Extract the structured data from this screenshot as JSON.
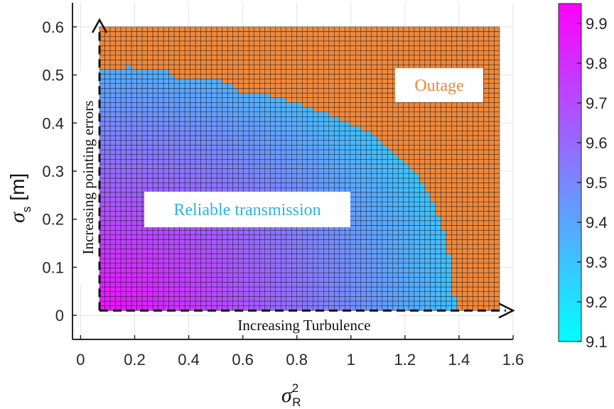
{
  "chart_data": {
    "type": "heatmap",
    "title": "",
    "xlabel": "σ",
    "xlabel_superscript": "2",
    "xlabel_subscript": "R",
    "ylabel": "σ",
    "ylabel_subscript": "s",
    "ylabel_unit": "[m]",
    "xlim": [
      -0.03,
      1.6
    ],
    "ylim": [
      -0.05,
      0.65
    ],
    "x_ticks": [
      0,
      0.2,
      0.4,
      0.6,
      0.8,
      1,
      1.2,
      1.4,
      1.6
    ],
    "x_tick_labels": [
      "0",
      "0.2",
      "0.4",
      "0.6",
      "0.8",
      "1",
      "1.2",
      "1.4",
      "1.6"
    ],
    "y_ticks": [
      0,
      0.1,
      0.2,
      0.3,
      0.4,
      0.5,
      0.6
    ],
    "y_tick_labels": [
      "0",
      "0.1",
      "0.2",
      "0.3",
      "0.4",
      "0.5",
      "0.6"
    ],
    "grid": true,
    "grid_extent": {
      "x_min": 0.07,
      "x_max": 1.55,
      "y_min": 0.01,
      "y_max": 0.6
    },
    "grid_cells": {
      "nx": 75,
      "ny": 60
    },
    "outage_color": "#f0883a",
    "cell_edge_color": "#1a1a1a",
    "reliable_boundary": [
      [
        0.07,
        0.51
      ],
      [
        0.17,
        0.51
      ],
      [
        0.18,
        0.52
      ],
      [
        0.2,
        0.51
      ],
      [
        0.33,
        0.51
      ],
      [
        0.35,
        0.49
      ],
      [
        0.52,
        0.49
      ],
      [
        0.55,
        0.48
      ],
      [
        0.57,
        0.47
      ],
      [
        0.62,
        0.46
      ],
      [
        0.7,
        0.46
      ],
      [
        0.72,
        0.45
      ],
      [
        0.76,
        0.45
      ],
      [
        0.8,
        0.44
      ],
      [
        0.85,
        0.43
      ],
      [
        0.9,
        0.42
      ],
      [
        0.95,
        0.41
      ],
      [
        1.0,
        0.4
      ],
      [
        1.04,
        0.39
      ],
      [
        1.08,
        0.38
      ],
      [
        1.12,
        0.36
      ],
      [
        1.16,
        0.34
      ],
      [
        1.2,
        0.32
      ],
      [
        1.22,
        0.31
      ],
      [
        1.25,
        0.29
      ],
      [
        1.28,
        0.26
      ],
      [
        1.3,
        0.24
      ],
      [
        1.31,
        0.22
      ],
      [
        1.33,
        0.2
      ],
      [
        1.35,
        0.17
      ],
      [
        1.36,
        0.14
      ],
      [
        1.37,
        0.11
      ],
      [
        1.38,
        0.08
      ],
      [
        1.38,
        0.05
      ],
      [
        1.39,
        0.02
      ],
      [
        1.4,
        0.01
      ]
    ],
    "colorbar": {
      "min": 9.1,
      "max": 9.95,
      "ticks": [
        9.1,
        9.2,
        9.3,
        9.4,
        9.5,
        9.6,
        9.7,
        9.8,
        9.9
      ],
      "tick_labels": [
        "9.1",
        "9.2",
        "9.3",
        "9.4",
        "9.5",
        "9.6",
        "9.7",
        "9.8",
        "9.9"
      ],
      "color_low": "#00ffff",
      "color_high": "#ff00ff"
    },
    "annotations": {
      "outage": "Outage",
      "reliable": "Reliable transmission",
      "turbulence": "Increasing Turbulence",
      "pointing": "Increasing pointing errors",
      "outage_color": "#f0883a",
      "reliable_color": "#2bb3e6"
    }
  }
}
